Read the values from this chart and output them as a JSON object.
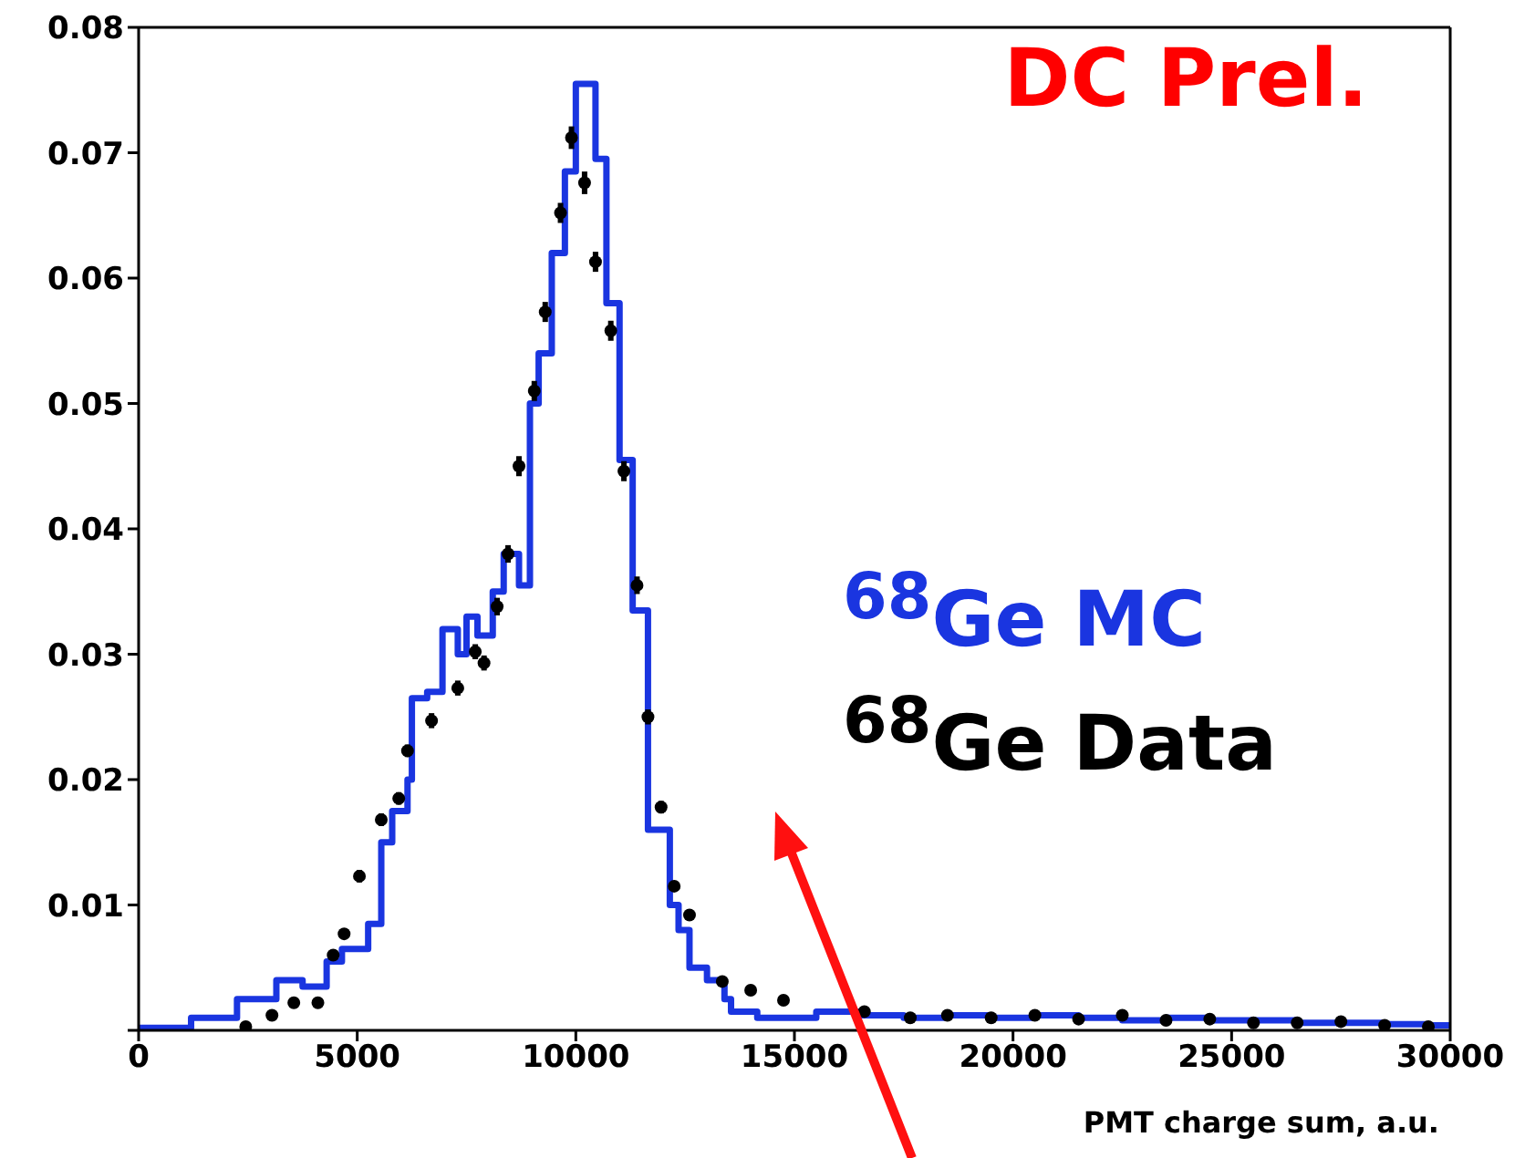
{
  "chart_data": {
    "type": "histogram",
    "xlabel": "PMT charge sum, a.u.",
    "annotations": [
      "DC Prel."
    ],
    "xlim": [
      0,
      30000
    ],
    "xticks": [
      0,
      5000,
      10000,
      15000,
      20000,
      25000,
      30000
    ],
    "ylim": [
      0,
      0.08
    ],
    "yticks": [
      {
        "value": 0,
        "label": null
      },
      0.01,
      0.02,
      0.03,
      0.04,
      0.05,
      0.06,
      0.07,
      0.08
    ],
    "legend": "right",
    "marker": "circle",
    "series": [
      {
        "type": "histogram",
        "name": "$^{68}$Ge MC",
        "color": "#1a35e0",
        "bins": [
          0,
          1200,
          2250,
          3150,
          3750,
          4300,
          4650,
          5250,
          5550,
          5800,
          6150,
          6250,
          6600,
          6950,
          7300,
          7500,
          7750,
          8100,
          8350,
          8700,
          8950,
          9150,
          9450,
          9750,
          10000,
          10450,
          10700,
          11000,
          11300,
          11650,
          12150,
          12350,
          12600,
          13000,
          13400,
          13550,
          14150,
          15500,
          16500,
          17500,
          18500,
          19500,
          20500,
          21500,
          22500,
          23500,
          24500,
          25500,
          26500,
          27500,
          28500,
          29500,
          30000
        ],
        "values": [
          0.0002,
          0.001,
          0.0025,
          0.004,
          0.0035,
          0.0055,
          0.0065,
          0.0085,
          0.015,
          0.0175,
          0.02,
          0.0265,
          0.027,
          0.032,
          0.03,
          0.033,
          0.0315,
          0.035,
          0.038,
          0.0355,
          0.05,
          0.054,
          0.062,
          0.0685,
          0.0755,
          0.0695,
          0.058,
          0.0455,
          0.0335,
          0.016,
          0.01,
          0.008,
          0.005,
          0.004,
          0.0025,
          0.0015,
          0.001,
          0.0015,
          0.0012,
          0.001,
          0.0012,
          0.001,
          0.0012,
          0.001,
          0.0008,
          0.001,
          0.0008,
          0.0008,
          0.0006,
          0.0006,
          0.0005,
          0.0004
        ]
      },
      {
        "type": "scatter",
        "name": "$^{68}$Ge Data",
        "color": "#000000",
        "x": [
          2450,
          3050,
          3550,
          4100,
          4450,
          4700,
          5050,
          5550,
          5950,
          6150,
          6700,
          7300,
          7700,
          7900,
          8200,
          8450,
          8700,
          9050,
          9300,
          9650,
          9900,
          10200,
          10450,
          10800,
          11100,
          11400,
          11650,
          11950,
          12250,
          12600,
          13350,
          14000,
          14750,
          16600,
          17650,
          18500,
          19500,
          20500,
          21500,
          22500,
          23500,
          24500,
          25500,
          26500,
          27500,
          28500,
          29500
        ],
        "values": [
          0.0003,
          0.0012,
          0.0022,
          0.0022,
          0.006,
          0.0077,
          0.0123,
          0.0168,
          0.0185,
          0.0223,
          0.0247,
          0.0273,
          0.0302,
          0.0293,
          0.0338,
          0.038,
          0.045,
          0.051,
          0.0573,
          0.0652,
          0.0712,
          0.0676,
          0.0613,
          0.0558,
          0.0446,
          0.0355,
          0.025,
          0.0178,
          0.0115,
          0.0092,
          0.0039,
          0.0032,
          0.0024,
          0.0015,
          0.001,
          0.0012,
          0.001,
          0.0012,
          0.0009,
          0.0012,
          0.0008,
          0.0009,
          0.0006,
          0.0006,
          0.0007,
          0.0004,
          0.0003
        ],
        "errors": [
          null,
          null,
          null,
          null,
          0.0004,
          0.0004,
          0.0005,
          0.0005,
          0.0005,
          0.0005,
          0.0006,
          0.0006,
          0.0006,
          0.0006,
          0.0007,
          0.0007,
          0.0008,
          0.0008,
          0.0008,
          0.0008,
          0.0009,
          0.0009,
          0.0008,
          0.0008,
          0.0008,
          0.0007,
          0.0006,
          0.0005,
          0.0004,
          0.0004,
          null,
          null,
          null,
          null,
          null,
          null,
          null,
          null,
          null,
          null,
          null,
          null,
          null,
          null,
          null,
          null,
          null
        ]
      }
    ]
  }
}
